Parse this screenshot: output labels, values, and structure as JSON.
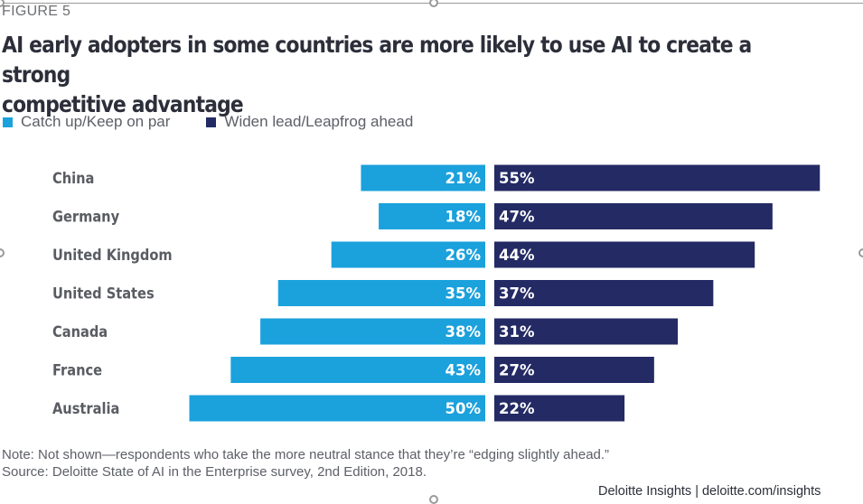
{
  "figure_label": "FIGURE 5",
  "title": "AI early adopters in some countries are more likely to use AI to create a strong competitive advantage",
  "title_lines": [
    "AI early adopters in some countries are more likely to use AI to create a strong",
    "competitive advantage"
  ],
  "legend": [
    {
      "label": "Catch up/Keep on par",
      "color": "#1ba1dc"
    },
    {
      "label": "Widen lead/Leapfrog ahead",
      "color": "#232a64"
    }
  ],
  "note": "Note: Not shown—respondents who take the more neutral stance that they’re “edging slightly ahead.”",
  "source": "Source: Deloitte State of AI in the Enterprise survey, 2nd Edition, 2018.",
  "credit": "Deloitte Insights | deloitte.com/insights",
  "chart_data": {
    "type": "bar",
    "orientation": "horizontal-diverging",
    "title": "AI early adopters in some countries are more likely to use AI to create a strong competitive advantage",
    "categories": [
      "China",
      "Germany",
      "United Kingdom",
      "United States",
      "Canada",
      "France",
      "Australia"
    ],
    "series": [
      {
        "name": "Catch up/Keep on par",
        "color": "#1ba1dc",
        "direction": "left",
        "values": [
          21,
          18,
          26,
          35,
          38,
          43,
          50
        ]
      },
      {
        "name": "Widen lead/Leapfrog ahead",
        "color": "#232a64",
        "direction": "right",
        "values": [
          55,
          47,
          44,
          37,
          31,
          27,
          22
        ]
      }
    ],
    "value_format": "{v}%",
    "xlabel": "",
    "ylabel": "",
    "grid": false,
    "legend_position": "top-left"
  }
}
